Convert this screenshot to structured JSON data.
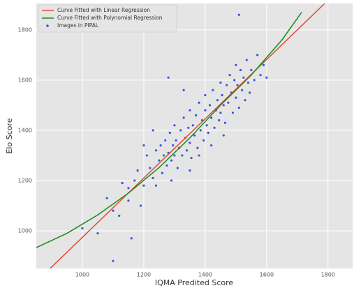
{
  "chart_data": {
    "type": "scatter",
    "xlabel": "IQMA Predited Score",
    "ylabel": "Elo Score",
    "xlim": [
      850,
      1880
    ],
    "ylim": [
      850,
      1905
    ],
    "xticks": [
      1000,
      1200,
      1400,
      1600,
      1800
    ],
    "yticks": [
      1000,
      1200,
      1400,
      1600,
      1800
    ],
    "grid": true,
    "legend": "upper left",
    "series": [
      {
        "name": "Curve Fitted with Linear Regression",
        "color": "#e24a33",
        "marker": "line",
        "x": [
          895,
          1789
        ],
        "values": [
          850,
          1905
        ]
      },
      {
        "name": "Curve Fitted with Polynomial Regression",
        "color": "#1a8a1a",
        "marker": "line",
        "x": [
          850,
          950,
          1050,
          1150,
          1250,
          1350,
          1450,
          1550,
          1650,
          1714
        ],
        "values": [
          933,
          990,
          1063,
          1150,
          1252,
          1370,
          1500,
          1620,
          1760,
          1870
        ]
      },
      {
        "name": "Images in PIPAL",
        "color": "#3a55e0",
        "marker": "point",
        "x": [
          1100,
          1150,
          1170,
          1180,
          1200,
          1210,
          1220,
          1230,
          1240,
          1250,
          1255,
          1260,
          1265,
          1270,
          1275,
          1280,
          1285,
          1290,
          1295,
          1300,
          1300,
          1305,
          1310,
          1315,
          1320,
          1325,
          1330,
          1335,
          1340,
          1345,
          1350,
          1350,
          1355,
          1360,
          1365,
          1370,
          1375,
          1380,
          1385,
          1390,
          1395,
          1400,
          1400,
          1405,
          1410,
          1415,
          1420,
          1425,
          1430,
          1435,
          1440,
          1445,
          1450,
          1450,
          1455,
          1460,
          1465,
          1470,
          1475,
          1480,
          1485,
          1490,
          1495,
          1500,
          1500,
          1505,
          1510,
          1515,
          1520,
          1525,
          1530,
          1535,
          1540,
          1545,
          1550,
          1560,
          1570,
          1580,
          1590,
          1600,
          1000,
          1050,
          1080,
          1120,
          1100,
          1160,
          1240,
          1200,
          1230,
          1290,
          1350,
          1380,
          1420,
          1460,
          1510,
          1280,
          1330,
          1150,
          1190,
          1130
        ],
        "values": [
          1080,
          1120,
          1200,
          1240,
          1180,
          1300,
          1250,
          1210,
          1320,
          1280,
          1340,
          1230,
          1300,
          1360,
          1260,
          1310,
          1390,
          1280,
          1340,
          1300,
          1420,
          1360,
          1250,
          1330,
          1400,
          1300,
          1450,
          1370,
          1320,
          1410,
          1350,
          1480,
          1290,
          1420,
          1380,
          1460,
          1330,
          1510,
          1400,
          1440,
          1360,
          1480,
          1540,
          1420,
          1390,
          1500,
          1450,
          1560,
          1410,
          1480,
          1520,
          1440,
          1590,
          1470,
          1540,
          1500,
          1430,
          1580,
          1510,
          1620,
          1550,
          1470,
          1600,
          1530,
          1660,
          1580,
          1490,
          1640,
          1560,
          1610,
          1520,
          1680,
          1590,
          1550,
          1640,
          1600,
          1700,
          1620,
          1660,
          1610,
          1010,
          990,
          1130,
          1060,
          880,
          970,
          1180,
          1340,
          1400,
          1200,
          1240,
          1300,
          1340,
          1380,
          1860,
          1610,
          1560,
          1170,
          1100,
          1190
        ]
      }
    ]
  }
}
